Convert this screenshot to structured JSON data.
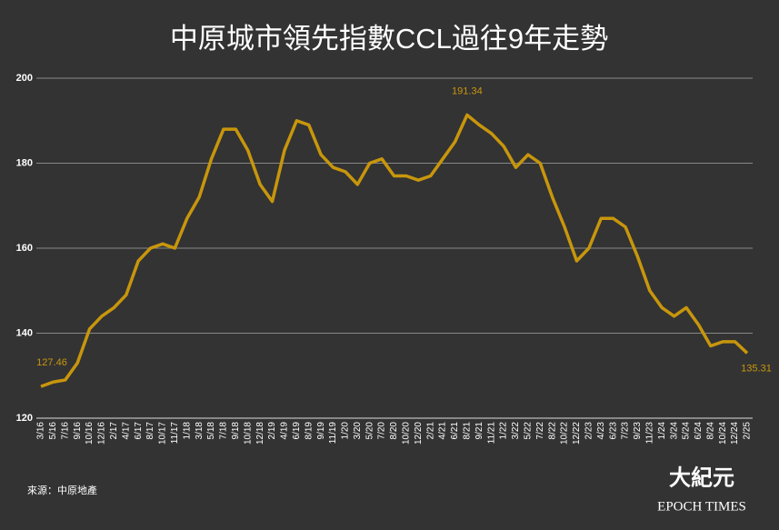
{
  "chart_data": {
    "type": "line",
    "title": "中原城市領先指數CCL過往9年走勢",
    "source": "來源：中原地產",
    "logo_cn": "大紀元",
    "logo_en": "EPOCH TIMES",
    "categories": [
      "3/16",
      "5/16",
      "7/16",
      "9/16",
      "10/16",
      "12/16",
      "2/17",
      "4/17",
      "6/17",
      "8/17",
      "10/17",
      "11/17",
      "1/18",
      "3/18",
      "5/18",
      "7/18",
      "9/18",
      "10/18",
      "12/18",
      "2/19",
      "4/19",
      "6/19",
      "8/19",
      "9/19",
      "11/19",
      "1/20",
      "3/20",
      "5/20",
      "7/20",
      "8/20",
      "10/20",
      "12/20",
      "2/21",
      "4/21",
      "6/21",
      "8/21",
      "9/21",
      "11/21",
      "1/22",
      "3/22",
      "5/22",
      "7/22",
      "8/22",
      "10/22",
      "12/22",
      "2/23",
      "4/23",
      "6/23",
      "7/23",
      "9/23",
      "11/23",
      "1/24",
      "3/24",
      "5/24",
      "6/24",
      "8/24",
      "10/24",
      "12/24",
      "2/25"
    ],
    "series": [
      {
        "name": "CCL",
        "color": "#c8960c",
        "values": [
          127.46,
          128.5,
          129,
          133,
          141,
          144,
          146,
          149,
          157,
          160,
          161,
          160,
          167,
          172,
          181,
          188,
          188,
          183,
          175,
          171,
          183,
          190,
          189,
          182,
          179,
          178,
          175,
          180,
          181,
          177,
          177,
          176,
          177,
          181,
          185,
          191.34,
          189,
          187,
          184,
          179,
          182,
          180,
          172,
          165,
          157,
          160,
          167,
          167,
          165,
          158,
          150,
          146,
          144,
          146,
          142,
          137,
          138,
          138,
          135.31
        ],
        "value_labels": [
          "127.46",
          null,
          null,
          null,
          null,
          null,
          null,
          null,
          null,
          null,
          null,
          null,
          null,
          null,
          null,
          null,
          null,
          null,
          null,
          null,
          null,
          null,
          null,
          null,
          null,
          null,
          null,
          null,
          null,
          null,
          null,
          null,
          null,
          null,
          null,
          "191.34",
          null,
          null,
          null,
          null,
          null,
          null,
          null,
          null,
          null,
          null,
          null,
          null,
          null,
          null,
          null,
          null,
          null,
          null,
          null,
          null,
          null,
          null,
          "135.31"
        ]
      }
    ],
    "ylim": [
      120,
      200
    ],
    "yticks": [
      120,
      140,
      160,
      180,
      200
    ],
    "grid": true
  }
}
